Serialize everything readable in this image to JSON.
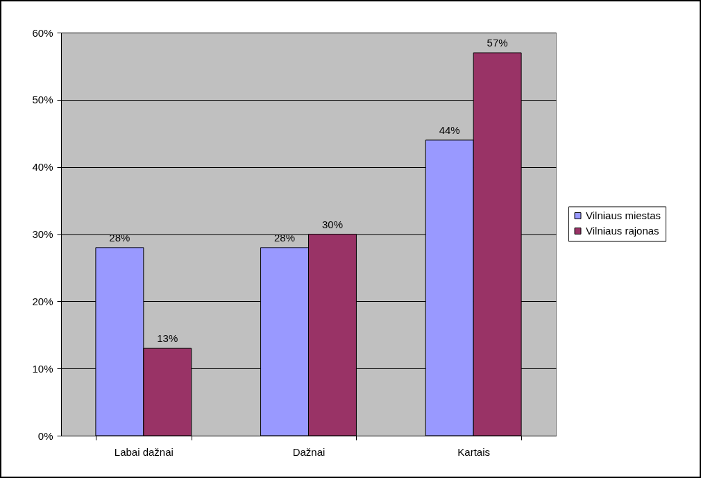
{
  "chart_data": {
    "type": "bar",
    "categories": [
      "Labai dažnai",
      "Dažnai",
      "Kartais"
    ],
    "series": [
      {
        "name": "Vilniaus miestas",
        "color": "#9999ff",
        "values": [
          28,
          28,
          44
        ],
        "value_labels": [
          "28%",
          "28%",
          "44%"
        ]
      },
      {
        "name": "Vilniaus rajonas",
        "color": "#993366",
        "values": [
          13,
          30,
          57
        ],
        "value_labels": [
          "13%",
          "30%",
          "57%"
        ]
      }
    ],
    "ylim": [
      0,
      60
    ],
    "yticks": [
      {
        "value": 0,
        "label": "0%"
      },
      {
        "value": 10,
        "label": "10%"
      },
      {
        "value": 20,
        "label": "20%"
      },
      {
        "value": 30,
        "label": "30%"
      },
      {
        "value": 40,
        "label": "40%"
      },
      {
        "value": 50,
        "label": "50%"
      },
      {
        "value": 60,
        "label": "60%"
      }
    ],
    "grid": "y",
    "legend": "right"
  }
}
